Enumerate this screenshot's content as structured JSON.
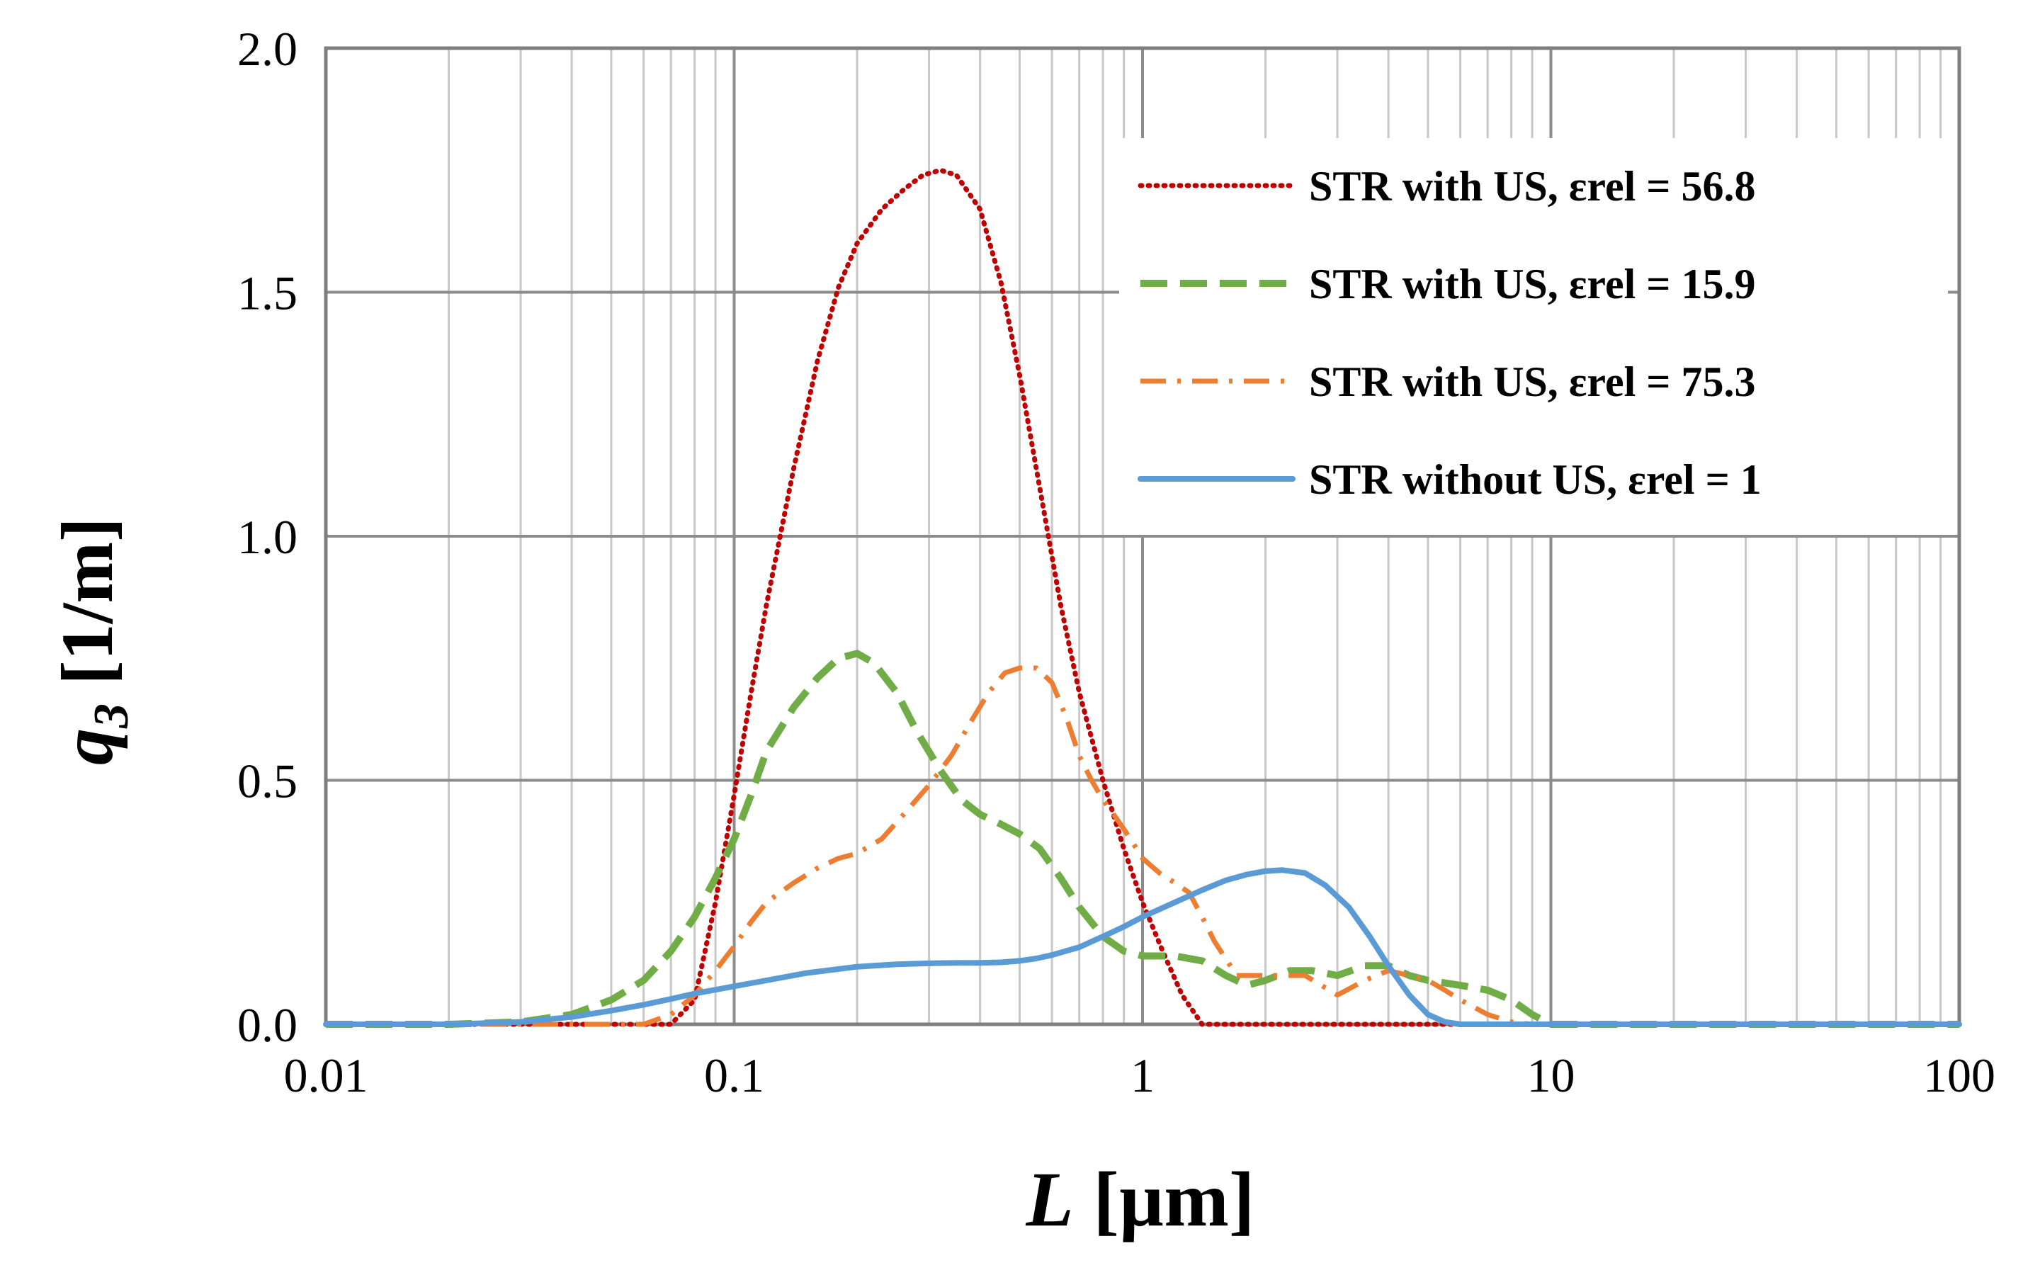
{
  "chart_data": {
    "type": "line",
    "xscale": "log",
    "xlim": [
      0.01,
      100
    ],
    "ylim": [
      0,
      2.0
    ],
    "xticks": [
      {
        "value": 0.01,
        "label": "0.01"
      },
      {
        "value": 0.1,
        "label": "0.1"
      },
      {
        "value": 1,
        "label": "1"
      },
      {
        "value": 10,
        "label": "10"
      },
      {
        "value": 100,
        "label": "100"
      }
    ],
    "yticks": [
      {
        "value": 0,
        "label": "0.0"
      },
      {
        "value": 0.5,
        "label": "0.5"
      },
      {
        "value": 1.0,
        "label": "1.0"
      },
      {
        "value": 1.5,
        "label": "1.5"
      },
      {
        "value": 2.0,
        "label": "2.0"
      }
    ],
    "xlabel": {
      "symbol": "L",
      "unit": "[µm]"
    },
    "ylabel": {
      "symbol": "q",
      "subscript": "3",
      "unit": "[1/m]"
    },
    "grid": true,
    "legend_position": "top-right",
    "series": [
      {
        "name": "STR with US, εrel = 56.8",
        "color": "#c00000",
        "style": "dotted",
        "x": [
          0.01,
          0.05,
          0.07,
          0.08,
          0.09,
          0.1,
          0.11,
          0.12,
          0.14,
          0.16,
          0.18,
          0.2,
          0.23,
          0.26,
          0.29,
          0.32,
          0.35,
          0.4,
          0.45,
          0.5,
          0.56,
          0.63,
          0.7,
          0.8,
          0.9,
          1.0,
          1.12,
          1.25,
          1.4,
          1.5,
          2,
          5,
          10,
          100
        ],
        "y": [
          0,
          0,
          0,
          0.05,
          0.25,
          0.47,
          0.68,
          0.86,
          1.14,
          1.36,
          1.51,
          1.6,
          1.67,
          1.71,
          1.74,
          1.75,
          1.74,
          1.67,
          1.52,
          1.33,
          1.1,
          0.86,
          0.68,
          0.5,
          0.36,
          0.25,
          0.15,
          0.06,
          0.0,
          0,
          0,
          0,
          0,
          0
        ]
      },
      {
        "name": "STR with US, εrel = 15.9",
        "color": "#70ad47",
        "style": "dashed",
        "x": [
          0.01,
          0.02,
          0.03,
          0.04,
          0.05,
          0.06,
          0.07,
          0.08,
          0.09,
          0.1,
          0.11,
          0.12,
          0.14,
          0.16,
          0.18,
          0.2,
          0.22,
          0.25,
          0.28,
          0.32,
          0.36,
          0.4,
          0.45,
          0.5,
          0.56,
          0.63,
          0.7,
          0.8,
          0.9,
          1.0,
          1.2,
          1.4,
          1.6,
          1.8,
          2.0,
          2.3,
          2.6,
          3.0,
          3.5,
          4.0,
          4.5,
          5.0,
          6.0,
          7.0,
          8.0,
          9.0,
          10,
          100
        ],
        "y": [
          0,
          0,
          0.005,
          0.02,
          0.05,
          0.09,
          0.15,
          0.22,
          0.3,
          0.38,
          0.47,
          0.56,
          0.65,
          0.71,
          0.75,
          0.76,
          0.74,
          0.68,
          0.6,
          0.52,
          0.46,
          0.43,
          0.41,
          0.39,
          0.36,
          0.3,
          0.24,
          0.18,
          0.15,
          0.14,
          0.14,
          0.13,
          0.1,
          0.08,
          0.09,
          0.11,
          0.11,
          0.1,
          0.12,
          0.12,
          0.1,
          0.09,
          0.08,
          0.07,
          0.05,
          0.02,
          0.0,
          0
        ]
      },
      {
        "name": "STR with US, εrel = 75.3",
        "color": "#ed7d31",
        "style": "dash-dot",
        "x": [
          0.01,
          0.06,
          0.07,
          0.08,
          0.09,
          0.1,
          0.11,
          0.12,
          0.14,
          0.16,
          0.18,
          0.2,
          0.23,
          0.26,
          0.3,
          0.34,
          0.38,
          0.42,
          0.46,
          0.5,
          0.55,
          0.6,
          0.65,
          0.7,
          0.75,
          0.8,
          0.85,
          0.9,
          0.95,
          1.0,
          1.1,
          1.2,
          1.3,
          1.4,
          1.5,
          1.7,
          2.0,
          2.5,
          3.0,
          3.5,
          4.0,
          4.5,
          5.0,
          5.5,
          6.0,
          7.0,
          8.0,
          9.0,
          10,
          100
        ],
        "y": [
          0,
          0,
          0.02,
          0.06,
          0.11,
          0.16,
          0.21,
          0.25,
          0.29,
          0.32,
          0.34,
          0.35,
          0.38,
          0.43,
          0.49,
          0.55,
          0.62,
          0.68,
          0.72,
          0.73,
          0.73,
          0.7,
          0.63,
          0.55,
          0.5,
          0.46,
          0.43,
          0.4,
          0.37,
          0.34,
          0.31,
          0.29,
          0.27,
          0.22,
          0.17,
          0.1,
          0.1,
          0.1,
          0.06,
          0.09,
          0.11,
          0.1,
          0.09,
          0.07,
          0.05,
          0.02,
          0.005,
          0,
          0,
          0
        ]
      },
      {
        "name": "STR without US, εrel = 1",
        "color": "#5b9bd5",
        "style": "solid",
        "x": [
          0.01,
          0.016,
          0.02,
          0.03,
          0.04,
          0.05,
          0.06,
          0.07,
          0.08,
          0.1,
          0.12,
          0.15,
          0.2,
          0.25,
          0.3,
          0.35,
          0.4,
          0.45,
          0.5,
          0.55,
          0.6,
          0.7,
          0.8,
          0.9,
          1.0,
          1.2,
          1.4,
          1.6,
          1.8,
          2.0,
          2.2,
          2.5,
          2.8,
          3.2,
          3.6,
          4.0,
          4.5,
          5.0,
          5.5,
          6.0,
          7.0,
          10,
          100
        ],
        "y": [
          0,
          0,
          0,
          0.005,
          0.015,
          0.028,
          0.04,
          0.052,
          0.063,
          0.078,
          0.09,
          0.105,
          0.118,
          0.123,
          0.125,
          0.126,
          0.126,
          0.127,
          0.13,
          0.135,
          0.142,
          0.158,
          0.18,
          0.2,
          0.22,
          0.25,
          0.275,
          0.295,
          0.307,
          0.314,
          0.316,
          0.31,
          0.285,
          0.24,
          0.18,
          0.12,
          0.06,
          0.02,
          0.005,
          0.0,
          0,
          0,
          0
        ]
      }
    ]
  }
}
